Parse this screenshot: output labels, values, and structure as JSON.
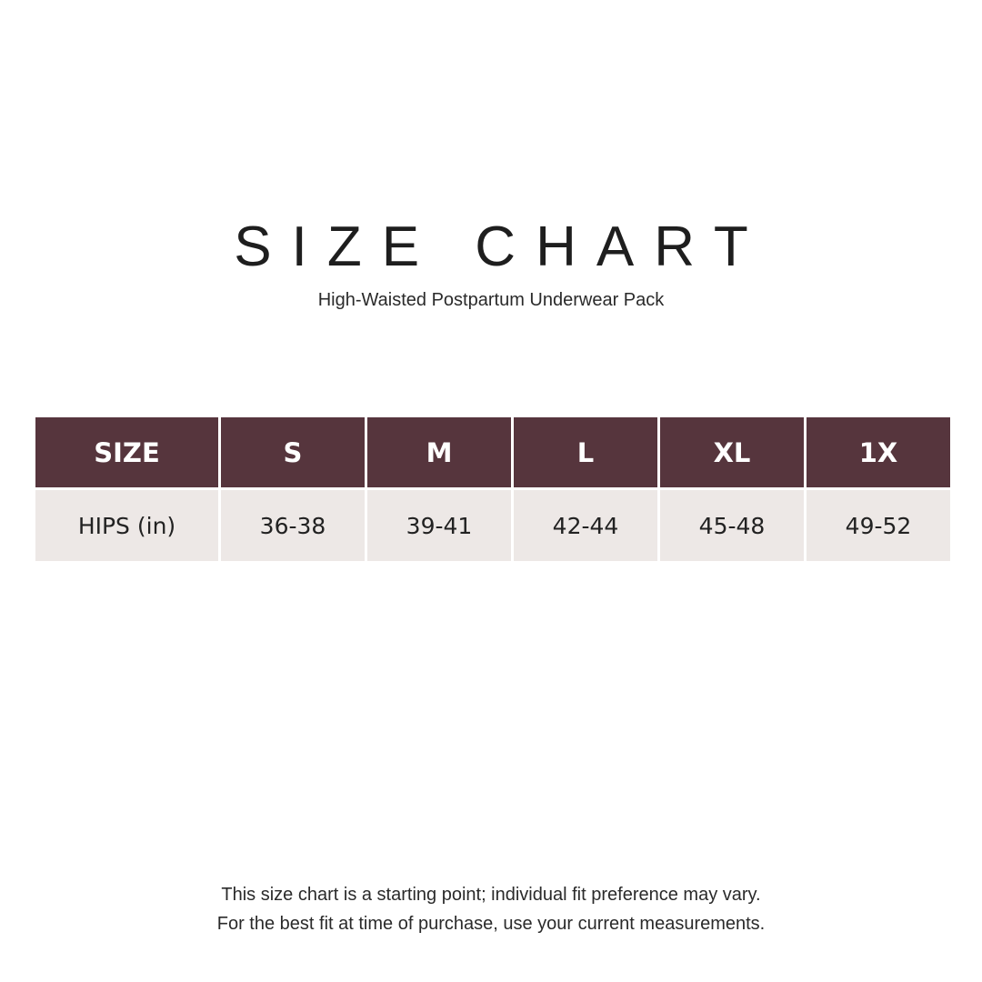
{
  "title": "SIZE CHART",
  "subtitle": "High-Waisted Postpartum Underwear Pack",
  "colors": {
    "header_bg": "#56353d",
    "row_bg": "#ede8e6"
  },
  "table": {
    "header": [
      "SIZE",
      "S",
      "M",
      "L",
      "XL",
      "1X"
    ],
    "rows": [
      [
        "HIPS (in)",
        "36-38",
        "39-41",
        "42-44",
        "45-48",
        "49-52"
      ]
    ]
  },
  "footer": {
    "line1": "This size chart is a starting point; individual fit preference may vary.",
    "line2": "For the best fit at time of purchase, use your current measurements."
  }
}
